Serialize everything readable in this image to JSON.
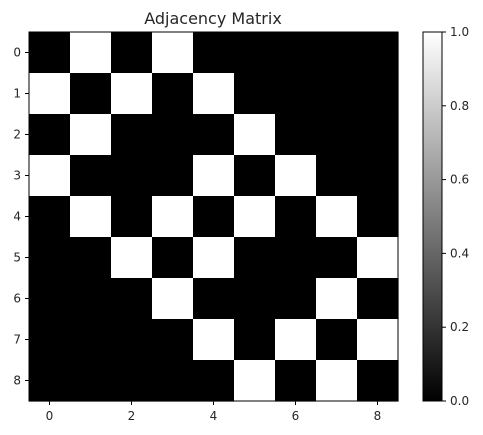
{
  "chart_data": {
    "type": "heatmap",
    "title": "Adjacency Matrix",
    "xlabel": "",
    "ylabel": "",
    "colormap": "gray",
    "colors": {
      "low": "#000000",
      "high": "#ffffff"
    },
    "x_ticks": [
      "0",
      "2",
      "4",
      "6",
      "8"
    ],
    "y_ticks": [
      "0",
      "1",
      "2",
      "3",
      "4",
      "5",
      "6",
      "7",
      "8"
    ],
    "colorbar": {
      "range": [
        0.0,
        1.0
      ],
      "ticks": [
        "0.0",
        "0.2",
        "0.4",
        "0.6",
        "0.8",
        "1.0"
      ]
    },
    "matrix": [
      [
        0,
        1,
        0,
        1,
        0,
        0,
        0,
        0,
        0
      ],
      [
        1,
        0,
        1,
        0,
        1,
        0,
        0,
        0,
        0
      ],
      [
        0,
        1,
        0,
        0,
        0,
        1,
        0,
        0,
        0
      ],
      [
        1,
        0,
        0,
        0,
        1,
        0,
        1,
        0,
        0
      ],
      [
        0,
        1,
        0,
        1,
        0,
        1,
        0,
        1,
        0
      ],
      [
        0,
        0,
        1,
        0,
        1,
        0,
        0,
        0,
        1
      ],
      [
        0,
        0,
        0,
        1,
        0,
        0,
        0,
        1,
        0
      ],
      [
        0,
        0,
        0,
        0,
        1,
        0,
        1,
        0,
        1
      ],
      [
        0,
        0,
        0,
        0,
        0,
        1,
        0,
        1,
        0
      ]
    ]
  }
}
